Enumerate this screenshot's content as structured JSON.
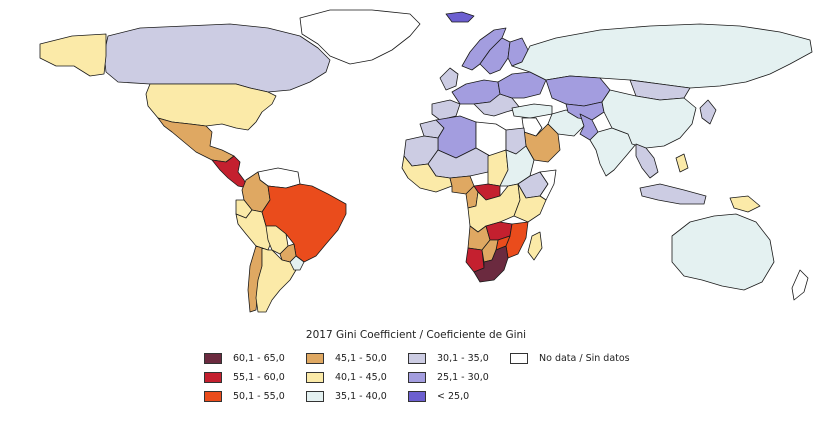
{
  "legend": {
    "title": "2017 Gini Coefficient / Coeficiente de Gini",
    "items": [
      {
        "label": "60,1 - 65,0",
        "color": "#6b2a3f"
      },
      {
        "label": "55,1 - 60,0",
        "color": "#c4202f"
      },
      {
        "label": "50,1 - 55,0",
        "color": "#ea4c1c"
      },
      {
        "label": "45,1 - 50,0",
        "color": "#dfa862"
      },
      {
        "label": "40,1 - 45,0",
        "color": "#fbeaa8"
      },
      {
        "label": "35,1 - 40,0",
        "color": "#e4f1f1"
      },
      {
        "label": "30,1 - 35,0",
        "color": "#cccce3"
      },
      {
        "label": "25,1 - 30,0",
        "color": "#a39ddf"
      },
      {
        "label": "< 25,0",
        "color": "#6c5fd0"
      },
      {
        "label": "No data / Sin datos",
        "color": "#ffffff"
      }
    ]
  },
  "map_regions": [
    {
      "name": "greenland",
      "color": "#ffffff"
    },
    {
      "name": "canada",
      "color": "#cccce3"
    },
    {
      "name": "alaska",
      "color": "#fbeaa8"
    },
    {
      "name": "usa",
      "color": "#fbeaa8"
    },
    {
      "name": "mexico",
      "color": "#dfa862"
    },
    {
      "name": "central-america",
      "color": "#c4202f"
    },
    {
      "name": "venezuela",
      "color": "#ffffff"
    },
    {
      "name": "colombia",
      "color": "#dfa862"
    },
    {
      "name": "ecuador",
      "color": "#fbeaa8"
    },
    {
      "name": "peru",
      "color": "#fbeaa8"
    },
    {
      "name": "brazil",
      "color": "#ea4c1c"
    },
    {
      "name": "bolivia",
      "color": "#fbeaa8"
    },
    {
      "name": "paraguay",
      "color": "#dfa862"
    },
    {
      "name": "chile",
      "color": "#dfa862"
    },
    {
      "name": "argentina",
      "color": "#fbeaa8"
    },
    {
      "name": "uruguay",
      "color": "#e4f1f1"
    },
    {
      "name": "iceland",
      "color": "#6c5fd0"
    },
    {
      "name": "norway",
      "color": "#a39ddf"
    },
    {
      "name": "sweden",
      "color": "#a39ddf"
    },
    {
      "name": "finland",
      "color": "#a39ddf"
    },
    {
      "name": "uk-ireland",
      "color": "#cccce3"
    },
    {
      "name": "western-europe",
      "color": "#a39ddf"
    },
    {
      "name": "iberia",
      "color": "#cccce3"
    },
    {
      "name": "italy-balkans",
      "color": "#cccce3"
    },
    {
      "name": "eastern-europe",
      "color": "#a39ddf"
    },
    {
      "name": "russia",
      "color": "#e4f1f1"
    },
    {
      "name": "kazakhstan",
      "color": "#a39ddf"
    },
    {
      "name": "mongolia",
      "color": "#cccce3"
    },
    {
      "name": "turkey",
      "color": "#e4f1f1"
    },
    {
      "name": "middle-east",
      "color": "#ffffff"
    },
    {
      "name": "iran",
      "color": "#e4f1f1"
    },
    {
      "name": "saudi-arabia",
      "color": "#dfa862"
    },
    {
      "name": "central-asia",
      "color": "#a39ddf"
    },
    {
      "name": "pakistan",
      "color": "#a39ddf"
    },
    {
      "name": "india",
      "color": "#e4f1f1"
    },
    {
      "name": "china",
      "color": "#e4f1f1"
    },
    {
      "name": "southeast-asia",
      "color": "#cccce3"
    },
    {
      "name": "japan-korea",
      "color": "#cccce3"
    },
    {
      "name": "philippines",
      "color": "#fbeaa8"
    },
    {
      "name": "indonesia",
      "color": "#cccce3"
    },
    {
      "name": "papua-new-guinea",
      "color": "#fbeaa8"
    },
    {
      "name": "australia",
      "color": "#e4f1f1"
    },
    {
      "name": "new-zealand",
      "color": "#ffffff"
    },
    {
      "name": "morocco",
      "color": "#cccce3"
    },
    {
      "name": "algeria",
      "color": "#a39ddf"
    },
    {
      "name": "libya",
      "color": "#ffffff"
    },
    {
      "name": "egypt",
      "color": "#cccce3"
    },
    {
      "name": "mauritania",
      "color": "#cccce3"
    },
    {
      "name": "mali-niger",
      "color": "#cccce3"
    },
    {
      "name": "chad",
      "color": "#fbeaa8"
    },
    {
      "name": "sudan",
      "color": "#e4f1f1"
    },
    {
      "name": "ethiopia",
      "color": "#cccce3"
    },
    {
      "name": "somalia",
      "color": "#ffffff"
    },
    {
      "name": "west-africa",
      "color": "#fbeaa8"
    },
    {
      "name": "nigeria",
      "color": "#dfa862"
    },
    {
      "name": "cameroon",
      "color": "#dfa862"
    },
    {
      "name": "central-african-republic",
      "color": "#c4202f"
    },
    {
      "name": "congo",
      "color": "#fbeaa8"
    },
    {
      "name": "east-africa",
      "color": "#fbeaa8"
    },
    {
      "name": "angola",
      "color": "#dfa862"
    },
    {
      "name": "zambia",
      "color": "#c4202f"
    },
    {
      "name": "mozambique",
      "color": "#ea4c1c"
    },
    {
      "name": "zimbabwe",
      "color": "#ea4c1c"
    },
    {
      "name": "namibia",
      "color": "#c4202f"
    },
    {
      "name": "botswana",
      "color": "#dfa862"
    },
    {
      "name": "south-africa",
      "color": "#6b2a3f"
    },
    {
      "name": "madagascar",
      "color": "#fbeaa8"
    }
  ]
}
